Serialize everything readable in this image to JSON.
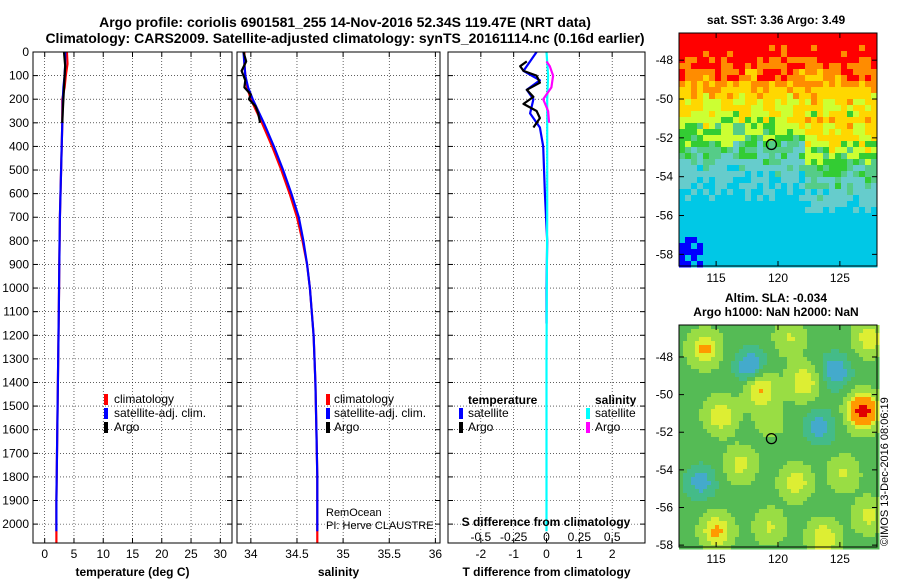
{
  "title_line1": "Argo profile: coriolis 6901581_255 14-Nov-2016 52.34S 119.47E (NRT data)",
  "title_line2": "Climatology: CARS2009. Satellite-adjusted climatology: synTS_20161114.nc (0.16d earlier)",
  "credit": "©IMOS 13-Dec-2016 08:06:19",
  "remocean_1": "RemOcean",
  "remocean_2": "PI: Herve CLAUSTRE",
  "colors": {
    "climatology": "#ff0000",
    "satellite": "#0000ff",
    "argo": "#000000",
    "sal_satellite": "#00ffff",
    "sal_argo": "#ff00ff"
  },
  "chart_data": [
    {
      "type": "line",
      "name": "temperature",
      "xlabel": "temperature (deg C)",
      "ylabel": "depth",
      "xlim": [
        -2,
        32
      ],
      "ylim": [
        2080,
        0
      ],
      "xticks": [
        0,
        5,
        10,
        15,
        20,
        25,
        30
      ],
      "yticks": [
        0,
        100,
        200,
        300,
        400,
        500,
        600,
        700,
        800,
        900,
        1000,
        1100,
        1200,
        1300,
        1400,
        1500,
        1600,
        1700,
        1800,
        1900,
        2000
      ],
      "legend": [
        "climatology",
        "satellite-adj. clim.",
        "Argo"
      ],
      "series": [
        {
          "name": "climatology",
          "depth": [
            0,
            50,
            100,
            150,
            200,
            300,
            400,
            500,
            700,
            900,
            1100,
            1300,
            1500,
            1700,
            1900,
            2080
          ],
          "values": [
            3.8,
            3.9,
            3.6,
            3.4,
            3.0,
            3.0,
            2.9,
            2.8,
            2.6,
            2.5,
            2.4,
            2.3,
            2.2,
            2.1,
            2.0,
            2.0
          ]
        },
        {
          "name": "satellite-adj. clim.",
          "depth": [
            0,
            50,
            100,
            150,
            200,
            300,
            400,
            500,
            700,
            900,
            1100,
            1300,
            1500,
            1700,
            1900,
            2030
          ],
          "values": [
            3.5,
            3.5,
            3.4,
            3.2,
            3.1,
            3.0,
            2.9,
            2.8,
            2.6,
            2.5,
            2.4,
            2.3,
            2.2,
            2.1,
            2.0,
            2.0
          ]
        },
        {
          "name": "Argo",
          "depth": [
            0,
            30,
            60,
            100,
            150,
            200,
            250,
            300
          ],
          "values": [
            3.3,
            3.4,
            3.5,
            3.4,
            3.3,
            3.2,
            3.1,
            3.0
          ]
        }
      ]
    },
    {
      "type": "line",
      "name": "salinity",
      "xlabel": "salinity",
      "ylabel": "depth",
      "xlim": [
        33.85,
        36.05
      ],
      "ylim": [
        2080,
        0
      ],
      "xticks": [
        34,
        34.5,
        35,
        35.5,
        36
      ],
      "xticklabels": [
        "34",
        "34.5",
        "35",
        "35.5",
        "36"
      ],
      "legend": [
        "climatology",
        "satellite-adj. clim.",
        "Argo"
      ],
      "series": [
        {
          "name": "climatology",
          "depth": [
            0,
            50,
            100,
            150,
            200,
            300,
            400,
            500,
            600,
            700,
            800,
            900,
            1000,
            1200,
            1400,
            1600,
            1800,
            2000,
            2080
          ],
          "values": [
            33.93,
            33.93,
            33.94,
            33.96,
            34.0,
            34.12,
            34.23,
            34.33,
            34.42,
            34.5,
            34.56,
            34.61,
            34.64,
            34.68,
            34.7,
            34.71,
            34.72,
            34.72,
            34.72
          ]
        },
        {
          "name": "satellite-adj. clim.",
          "depth": [
            0,
            50,
            100,
            150,
            200,
            300,
            400,
            500,
            600,
            700,
            800,
            900,
            1000,
            1200,
            1400,
            1600,
            1800,
            2000,
            2030
          ],
          "values": [
            33.92,
            33.93,
            33.94,
            33.97,
            34.02,
            34.14,
            34.25,
            34.35,
            34.44,
            34.52,
            34.57,
            34.61,
            34.64,
            34.68,
            34.7,
            34.71,
            34.72,
            34.72,
            34.72
          ]
        },
        {
          "name": "Argo",
          "depth": [
            0,
            40,
            80,
            120,
            150,
            180,
            200,
            230,
            260,
            300
          ],
          "values": [
            33.92,
            33.95,
            33.9,
            33.94,
            33.93,
            34.0,
            33.98,
            34.05,
            34.08,
            34.1
          ]
        }
      ]
    },
    {
      "type": "line",
      "name": "difference",
      "xlabel": "T difference from climatology",
      "xlabel_top": "S difference from climatology",
      "xlim": [
        -3,
        3
      ],
      "ylim": [
        2080,
        0
      ],
      "xticks": [
        -2,
        -1,
        0,
        1,
        2
      ],
      "top_ticks": [
        -0.5,
        -0.25,
        0,
        0.25,
        0.5
      ],
      "top_ticklabels": [
        "-0.5",
        "-0.25",
        "0",
        "0.25",
        "0.5"
      ],
      "legend_left_title": "temperature",
      "legend_right_title": "salinity",
      "legend_left": [
        "satellite",
        "Argo"
      ],
      "legend_right": [
        "satellite",
        "Argo"
      ],
      "series": [
        {
          "name": "T satellite",
          "depth": [
            0,
            40,
            80,
            120,
            160,
            200,
            260,
            320,
            400,
            600,
            800,
            1000,
            1100,
            1150
          ],
          "values": [
            -0.3,
            -0.5,
            -0.7,
            -0.2,
            -0.6,
            -0.4,
            -0.5,
            -0.2,
            -0.1,
            -0.05,
            0.02,
            0.0,
            0.0,
            0.0
          ]
        },
        {
          "name": "T Argo",
          "depth": [
            40,
            60,
            80,
            100,
            130,
            160,
            190,
            220,
            250,
            280,
            320
          ],
          "values": [
            -0.6,
            -0.8,
            -0.7,
            -0.3,
            -0.2,
            -0.6,
            -0.4,
            -0.7,
            -0.3,
            -0.2,
            -0.4
          ]
        },
        {
          "name": "S satellite",
          "depth": [
            0,
            100,
            200,
            400,
            700,
            1000,
            1300,
            1600,
            1900,
            2030
          ],
          "values": [
            0.0,
            0.05,
            0.02,
            0.02,
            0.02,
            0.01,
            0.0,
            0.0,
            0.0,
            0.0
          ]
        },
        {
          "name": "S Argo",
          "depth": [
            40,
            60,
            100,
            150,
            200,
            250,
            300
          ],
          "values": [
            0.0,
            0.1,
            0.2,
            0.15,
            -0.1,
            0.05,
            0.08
          ]
        }
      ]
    },
    {
      "type": "heatmap",
      "name": "sst-map",
      "title": "sat. SST: 3.36 Argo: 3.49",
      "xlim": [
        112,
        128
      ],
      "ylim": [
        -58.6,
        -46.6
      ],
      "xticks": [
        115,
        120,
        125
      ],
      "yticks": [
        -48,
        -50,
        -52,
        -54,
        -56,
        -58
      ],
      "argo_lon": 119.47,
      "argo_lat": -52.34
    },
    {
      "type": "heatmap",
      "name": "sla-map",
      "title_line1": "Altim. SLA: -0.034",
      "title_line2": "Argo h1000: NaN h2000: NaN",
      "xlim": [
        112,
        128
      ],
      "ylim": [
        -58.1,
        -46.3
      ],
      "xticks": [
        115,
        120,
        125
      ],
      "yticks": [
        -48,
        -50,
        -52,
        -54,
        -56,
        -58
      ],
      "argo_lon": 119.47,
      "argo_lat": -52.34
    }
  ]
}
